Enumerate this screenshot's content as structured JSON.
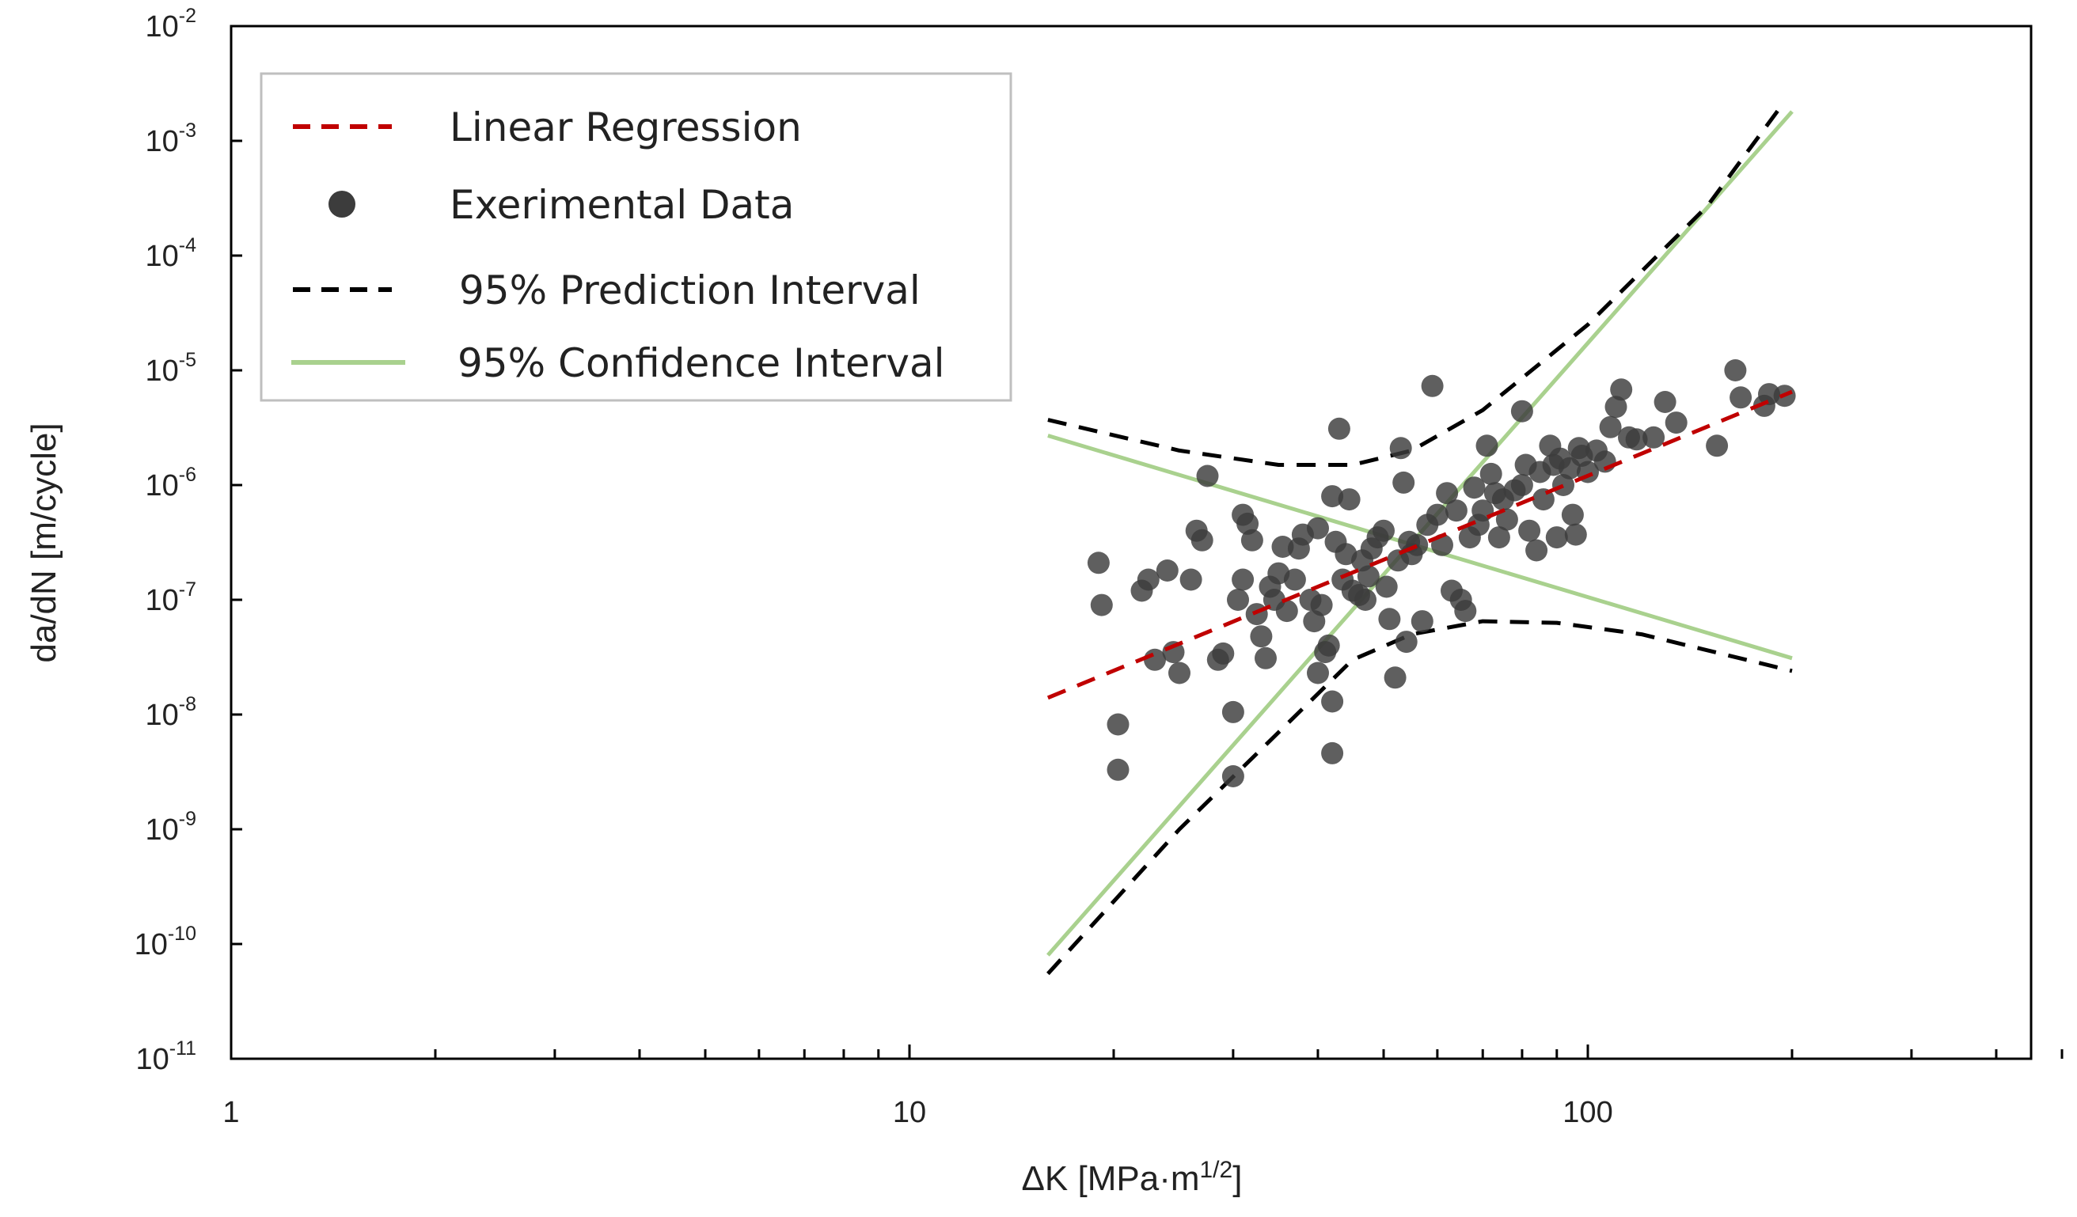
{
  "chart_data": {
    "type": "scatter",
    "xlabel": "ΔK [MPa·m",
    "xlabel_sup": "1/2",
    "xlabel_end": "]",
    "ylabel": "da/dN [m/cycle]",
    "x_scale": "log",
    "y_scale": "log",
    "xlim": [
      1,
      500
    ],
    "ylim": [
      1e-11,
      0.01
    ],
    "grid": false,
    "legend_position": "top-left",
    "x_ticks": [
      {
        "value": 1,
        "label": "1"
      },
      {
        "value": 10,
        "label": "10"
      },
      {
        "value": 100,
        "label": "100"
      }
    ],
    "y_ticks": [
      {
        "value": 0.01,
        "base": "10",
        "exp": "-2"
      },
      {
        "value": 0.001,
        "base": "10",
        "exp": "-3"
      },
      {
        "value": 0.0001,
        "base": "10",
        "exp": "-4"
      },
      {
        "value": 1e-05,
        "base": "10",
        "exp": "-5"
      },
      {
        "value": 1e-06,
        "base": "10",
        "exp": "-6"
      },
      {
        "value": 1e-07,
        "base": "10",
        "exp": "-7"
      },
      {
        "value": 1e-08,
        "base": "10",
        "exp": "-8"
      },
      {
        "value": 1e-09,
        "base": "10",
        "exp": "-9"
      },
      {
        "value": 1e-10,
        "base": "10",
        "exp": "-10"
      },
      {
        "value": 1e-11,
        "base": "10",
        "exp": "-11"
      }
    ],
    "legend": [
      {
        "label": "Linear Regression",
        "style": "dashed-red"
      },
      {
        "label": "Exerimental Data",
        "style": "marker"
      },
      {
        "label": "95% Prediction Interval",
        "style": "dashed-black"
      },
      {
        "label": "95% Confidence Interval",
        "style": "solid-green"
      }
    ],
    "colors": {
      "regression": "#c00000",
      "points": "#3c3c3c",
      "prediction": "#000000",
      "confidence": "#a9d18e"
    },
    "series": [
      {
        "name": "Linear Regression",
        "kind": "line",
        "points": [
          [
            16,
            1.4e-08
          ],
          [
            200,
            6.5e-06
          ]
        ]
      },
      {
        "name": "95% Prediction Interval",
        "kind": "line",
        "segments": [
          [
            [
              16,
              3.7e-06
            ],
            [
              25,
              2e-06
            ],
            [
              35,
              1.5e-06
            ],
            [
              45,
              1.5e-06
            ],
            [
              55,
              2e-06
            ],
            [
              70,
              4.5e-06
            ],
            [
              100,
              2.5e-05
            ],
            [
              150,
              0.00027
            ],
            [
              195,
              0.0022
            ]
          ],
          [
            [
              16,
              5.5e-11
            ],
            [
              25,
              1e-09
            ],
            [
              35,
              7e-09
            ],
            [
              45,
              3e-08
            ],
            [
              55,
              5e-08
            ],
            [
              70,
              6.5e-08
            ],
            [
              90,
              6.3e-08
            ],
            [
              120,
              5e-08
            ],
            [
              200,
              2.4e-08
            ]
          ]
        ]
      },
      {
        "name": "95% Confidence Interval",
        "kind": "line",
        "segments": [
          [
            [
              16,
              2.7e-06
            ],
            [
              200,
              3.1e-08
            ]
          ],
          [
            [
              16,
              8e-11
            ],
            [
              200,
              0.0018
            ]
          ]
        ]
      },
      {
        "name": "Exerimental Data",
        "kind": "scatter",
        "points": [
          [
            19,
            2.1e-07
          ],
          [
            19.2,
            9e-08
          ],
          [
            20.3,
            8.2e-09
          ],
          [
            20.3,
            3.3e-09
          ],
          [
            22,
            1.2e-07
          ],
          [
            22.5,
            1.5e-07
          ],
          [
            23,
            3e-08
          ],
          [
            24,
            1.8e-07
          ],
          [
            24.5,
            3.5e-08
          ],
          [
            25,
            2.3e-08
          ],
          [
            26,
            1.5e-07
          ],
          [
            26.5,
            4e-07
          ],
          [
            27,
            3.3e-07
          ],
          [
            27.5,
            1.2e-06
          ],
          [
            28.5,
            3e-08
          ],
          [
            29,
            3.4e-08
          ],
          [
            30,
            1.05e-08
          ],
          [
            30,
            2.9e-09
          ],
          [
            30.5,
            1e-07
          ],
          [
            31,
            1.5e-07
          ],
          [
            31,
            5.5e-07
          ],
          [
            31.5,
            4.6e-07
          ],
          [
            32,
            3.3e-07
          ],
          [
            32.5,
            7.5e-08
          ],
          [
            33,
            4.8e-08
          ],
          [
            33.5,
            3.1e-08
          ],
          [
            34,
            1.3e-07
          ],
          [
            34.5,
            1e-07
          ],
          [
            35,
            1.7e-07
          ],
          [
            35.5,
            2.9e-07
          ],
          [
            36,
            8e-08
          ],
          [
            37,
            1.5e-07
          ],
          [
            37.5,
            2.8e-07
          ],
          [
            38,
            3.7e-07
          ],
          [
            39,
            1e-07
          ],
          [
            39.5,
            6.5e-08
          ],
          [
            40,
            4.2e-07
          ],
          [
            40,
            2.3e-08
          ],
          [
            40.5,
            9e-08
          ],
          [
            41,
            3.5e-08
          ],
          [
            41.5,
            4e-08
          ],
          [
            42,
            8e-07
          ],
          [
            42,
            1.3e-08
          ],
          [
            42,
            4.6e-09
          ],
          [
            42.5,
            3.2e-07
          ],
          [
            43,
            3.1e-06
          ],
          [
            43.5,
            1.5e-07
          ],
          [
            44,
            2.5e-07
          ],
          [
            44.5,
            7.5e-07
          ],
          [
            45,
            1.2e-07
          ],
          [
            46,
            1.1e-07
          ],
          [
            46.5,
            2.2e-07
          ],
          [
            47,
            1e-07
          ],
          [
            47.5,
            1.6e-07
          ],
          [
            48,
            2.8e-07
          ],
          [
            49,
            3.5e-07
          ],
          [
            50,
            4e-07
          ],
          [
            50.5,
            1.3e-07
          ],
          [
            51,
            6.8e-08
          ],
          [
            52,
            2.1e-08
          ],
          [
            52.5,
            2.2e-07
          ],
          [
            53,
            2.1e-06
          ],
          [
            53.5,
            1.05e-06
          ],
          [
            54,
            4.3e-08
          ],
          [
            54.5,
            3.2e-07
          ],
          [
            55,
            2.5e-07
          ],
          [
            56,
            3e-07
          ],
          [
            57,
            6.5e-08
          ],
          [
            58,
            4.5e-07
          ],
          [
            59,
            7.3e-06
          ],
          [
            60,
            5.5e-07
          ],
          [
            61,
            3e-07
          ],
          [
            62,
            8.5e-07
          ],
          [
            63,
            1.2e-07
          ],
          [
            64,
            6e-07
          ],
          [
            65,
            1e-07
          ],
          [
            66,
            8e-08
          ],
          [
            67,
            3.5e-07
          ],
          [
            68,
            9.5e-07
          ],
          [
            69,
            4.5e-07
          ],
          [
            70,
            6e-07
          ],
          [
            71,
            2.2e-06
          ],
          [
            72,
            1.25e-06
          ],
          [
            73,
            8.5e-07
          ],
          [
            74,
            3.5e-07
          ],
          [
            75,
            7.5e-07
          ],
          [
            76,
            5e-07
          ],
          [
            78,
            9e-07
          ],
          [
            80,
            1e-06
          ],
          [
            80,
            4.4e-06
          ],
          [
            81,
            1.5e-06
          ],
          [
            82,
            4e-07
          ],
          [
            84,
            2.7e-07
          ],
          [
            85,
            1.3e-06
          ],
          [
            86,
            7.5e-07
          ],
          [
            88,
            2.2e-06
          ],
          [
            89,
            1.5e-06
          ],
          [
            90,
            3.5e-07
          ],
          [
            91,
            1.7e-06
          ],
          [
            92,
            1e-06
          ],
          [
            94,
            1.4e-06
          ],
          [
            95,
            5.5e-07
          ],
          [
            96,
            3.7e-07
          ],
          [
            97,
            2.1e-06
          ],
          [
            98,
            1.8e-06
          ],
          [
            100,
            1.3e-06
          ],
          [
            103,
            2e-06
          ],
          [
            106,
            1.6e-06
          ],
          [
            108,
            3.2e-06
          ],
          [
            110,
            4.8e-06
          ],
          [
            112,
            6.8e-06
          ],
          [
            115,
            2.6e-06
          ],
          [
            118,
            2.5e-06
          ],
          [
            125,
            2.6e-06
          ],
          [
            130,
            5.3e-06
          ],
          [
            135,
            3.5e-06
          ],
          [
            155,
            2.2e-06
          ],
          [
            165,
            1e-05
          ],
          [
            168,
            5.8e-06
          ],
          [
            182,
            4.9e-06
          ],
          [
            185,
            6.2e-06
          ],
          [
            195,
            6e-06
          ]
        ]
      }
    ]
  }
}
